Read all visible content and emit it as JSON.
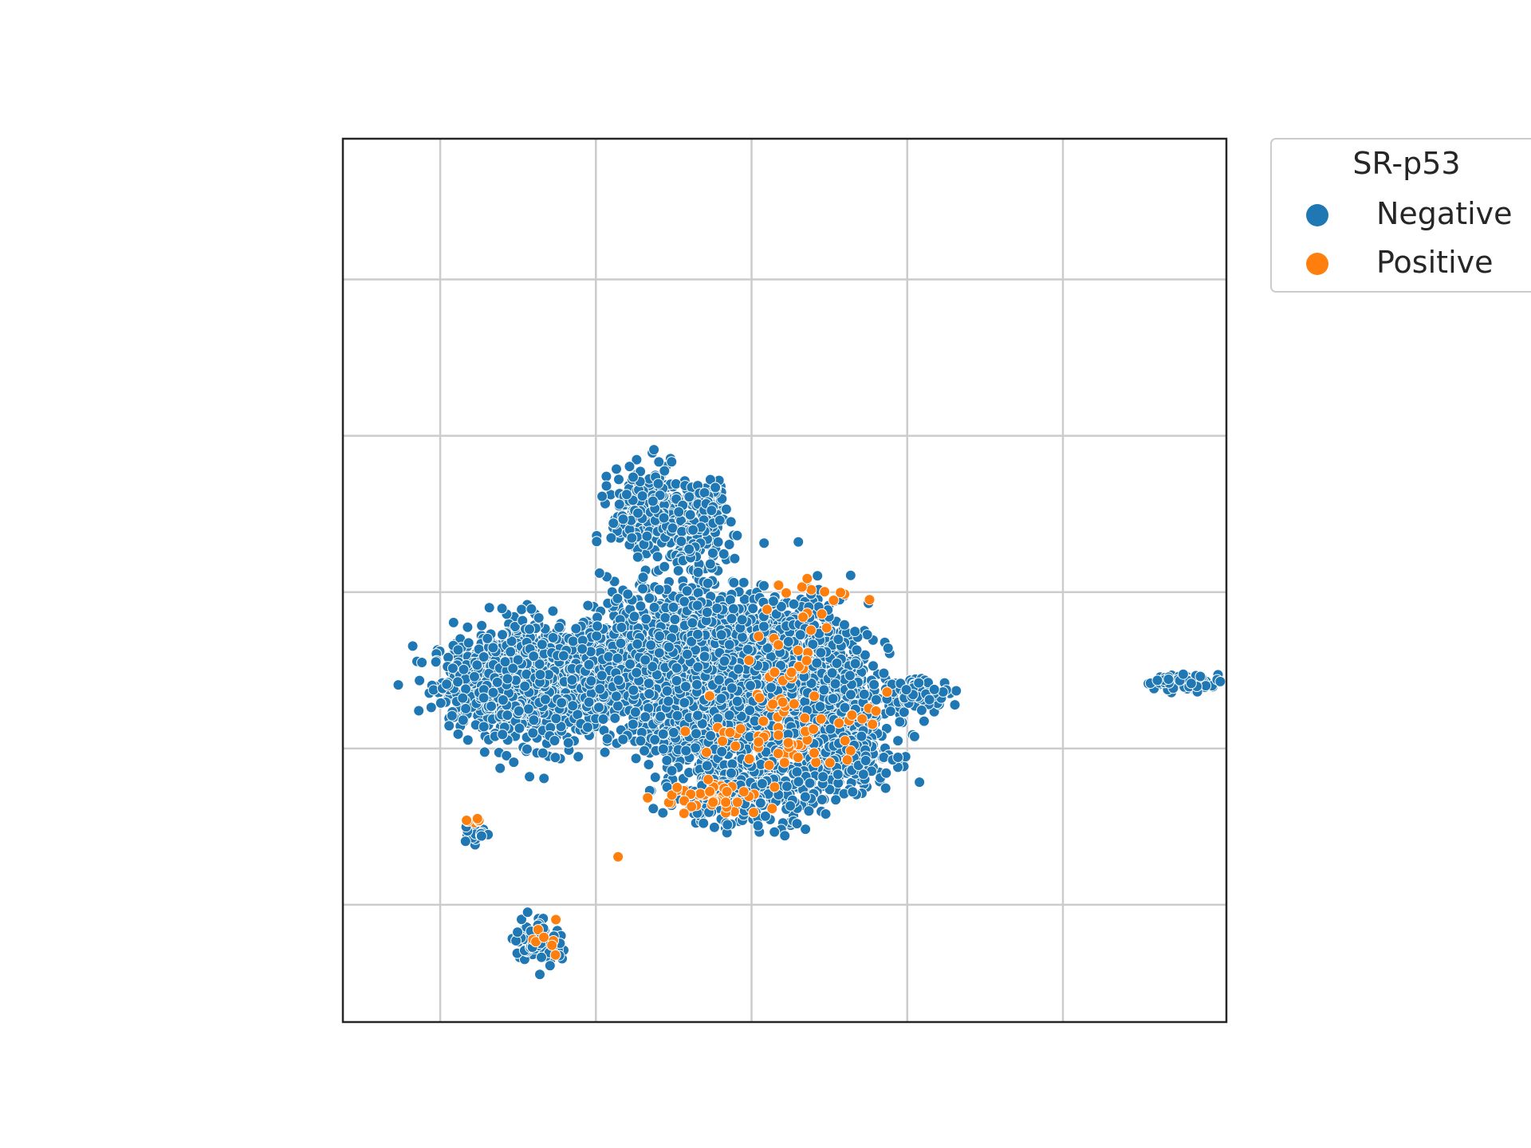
{
  "chart_data": {
    "type": "scatter",
    "title": "",
    "xlabel": "",
    "ylabel": "",
    "xlim": [
      -3.75,
      7.6
    ],
    "ylim": [
      -4.2,
      7.1
    ],
    "xticks": [
      -2.5,
      -0.5,
      1.5,
      3.5,
      5.5
    ],
    "yticks": [
      -2.7,
      -0.7,
      1.3,
      3.3,
      5.3
    ],
    "grid": true,
    "tick_labels_shown": false,
    "legend": {
      "title": "SR-p53",
      "placement": "outside-right-top",
      "entries": [
        {
          "label": "Negative",
          "color": "#1f77b4"
        },
        {
          "label": "Positive",
          "color": "#ff7f0e"
        }
      ]
    },
    "series": [
      {
        "name": "Negative",
        "color": "#1f77b4",
        "point_count_estimate": 6500,
        "clusters": [
          {
            "cx": -1.9,
            "cy": 0.15,
            "sx": 0.35,
            "sy": 0.28,
            "n": 400
          },
          {
            "cx": -1.2,
            "cy": 0.1,
            "sx": 0.45,
            "sy": 0.35,
            "n": 900
          },
          {
            "cx": -0.3,
            "cy": 0.4,
            "sx": 0.3,
            "sy": 0.3,
            "n": 250
          },
          {
            "cx": 0.8,
            "cy": 0.0,
            "sx": 0.45,
            "sy": 0.45,
            "n": 1300
          },
          {
            "cx": 1.9,
            "cy": 0.15,
            "sx": 0.55,
            "sy": 0.5,
            "n": 1700
          },
          {
            "cx": 2.7,
            "cy": -0.7,
            "sx": 0.3,
            "sy": 0.25,
            "n": 350
          },
          {
            "cx": 0.2,
            "cy": 2.3,
            "sx": 0.25,
            "sy": 0.3,
            "n": 300
          },
          {
            "cx": 0.9,
            "cy": 2.5,
            "sx": 0.12,
            "sy": 0.12,
            "n": 60
          },
          {
            "cx": 0.8,
            "cy": 1.9,
            "sx": 0.2,
            "sy": 0.25,
            "n": 120
          },
          {
            "cx": 3.7,
            "cy": 0.0,
            "sx": 0.18,
            "sy": 0.1,
            "n": 90
          },
          {
            "cx": 7.05,
            "cy": 0.15,
            "sx": 0.25,
            "sy": 0.05,
            "n": 70
          },
          {
            "cx": -1.25,
            "cy": -3.15,
            "sx": 0.15,
            "sy": 0.15,
            "n": 90
          },
          {
            "cx": -2.05,
            "cy": -1.8,
            "sx": 0.08,
            "sy": 0.08,
            "n": 20
          },
          {
            "cx": 1.4,
            "cy": -1.3,
            "sx": 0.5,
            "sy": 0.2,
            "n": 300
          },
          {
            "cx": 0.6,
            "cy": 0.9,
            "sx": 0.5,
            "sy": 0.3,
            "n": 250
          }
        ]
      },
      {
        "name": "Positive",
        "color": "#ff7f0e",
        "point_count_estimate": 160,
        "clusters": [
          {
            "cx": 2.0,
            "cy": -0.5,
            "sx": 0.5,
            "sy": 0.3,
            "n": 60
          },
          {
            "cx": 1.0,
            "cy": -1.35,
            "sx": 0.35,
            "sy": 0.12,
            "n": 45
          },
          {
            "cx": 2.0,
            "cy": 0.5,
            "sx": 0.3,
            "sy": 0.3,
            "n": 20
          },
          {
            "cx": 2.6,
            "cy": 1.3,
            "sx": 0.25,
            "sy": 0.1,
            "n": 10
          },
          {
            "cx": -2.05,
            "cy": -1.65,
            "sx": 0.05,
            "sy": 0.05,
            "n": 6
          },
          {
            "cx": -1.2,
            "cy": -3.1,
            "sx": 0.1,
            "sy": 0.1,
            "n": 8
          },
          {
            "cx": 2.9,
            "cy": -0.3,
            "sx": 0.12,
            "sy": 0.1,
            "n": 5
          },
          {
            "cx": -0.2,
            "cy": -2.1,
            "sx": 0.02,
            "sy": 0.02,
            "n": 1
          }
        ]
      }
    ]
  }
}
